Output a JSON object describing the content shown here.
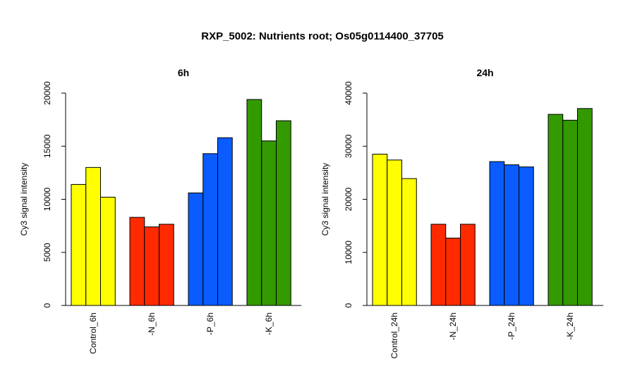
{
  "title": "RXP_5002: Nutrients root; Os05g0114400_37705",
  "chart_data": [
    {
      "type": "bar",
      "title": "6h",
      "ylabel": "Cy3 signal intensity",
      "ylim": [
        0,
        20000
      ],
      "yticks": [
        0,
        5000,
        10000,
        15000,
        20000
      ],
      "categories": [
        "Control_6h",
        "-N_6h",
        "-P_6h",
        "-K_6h"
      ],
      "group_colors": [
        "#ffff00",
        "#ff2a00",
        "#0a5cff",
        "#339900"
      ],
      "values": [
        [
          11400,
          13000,
          10200
        ],
        [
          8300,
          7400,
          7650
        ],
        [
          10600,
          14300,
          15800
        ],
        [
          19400,
          15500,
          17400
        ]
      ]
    },
    {
      "type": "bar",
      "title": "24h",
      "ylabel": "Cy3 signal intensity",
      "ylim": [
        0,
        40000
      ],
      "yticks": [
        0,
        10000,
        20000,
        30000,
        40000
      ],
      "categories": [
        "Control_24h",
        "-N_24h",
        "-P_24h",
        "-K_24h"
      ],
      "group_colors": [
        "#ffff00",
        "#ff2a00",
        "#0a5cff",
        "#339900"
      ],
      "values": [
        [
          28500,
          27400,
          23900
        ],
        [
          15300,
          12700,
          15300
        ],
        [
          27100,
          26500,
          26100
        ],
        [
          36000,
          34900,
          37100
        ]
      ]
    }
  ]
}
